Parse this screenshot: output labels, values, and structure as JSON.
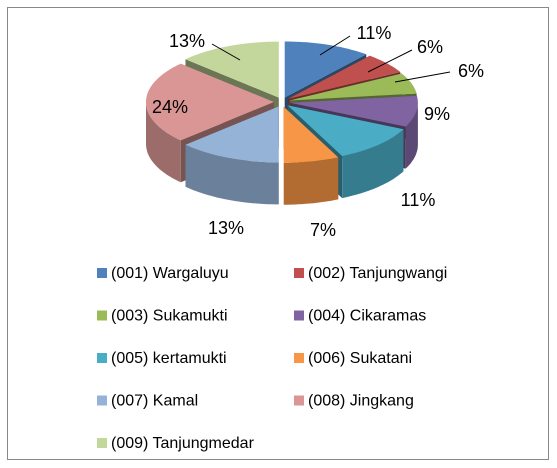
{
  "chart_data": {
    "type": "pie",
    "categories": [
      "(001) Wargaluyu",
      "(002) Tanjungwangi",
      "(003) Sukamukti",
      "(004) Cikaramas",
      "(005) kertamukti",
      "(006) Sukatani",
      "(007) Kamal",
      "(008) Jingkang",
      "(009) Tanjungmedar"
    ],
    "values": [
      11,
      6,
      6,
      9,
      11,
      7,
      13,
      24,
      13
    ],
    "value_labels": [
      "11%",
      "6%",
      "6%",
      "9%",
      "11%",
      "7%",
      "13%",
      "24%",
      "13%"
    ],
    "colors": [
      "#4F81BD",
      "#C0504D",
      "#9BBB59",
      "#8064A2",
      "#4BACC6",
      "#F79646",
      "#95B3D7",
      "#D99694",
      "#C3D69B"
    ],
    "legend": "bottom"
  }
}
